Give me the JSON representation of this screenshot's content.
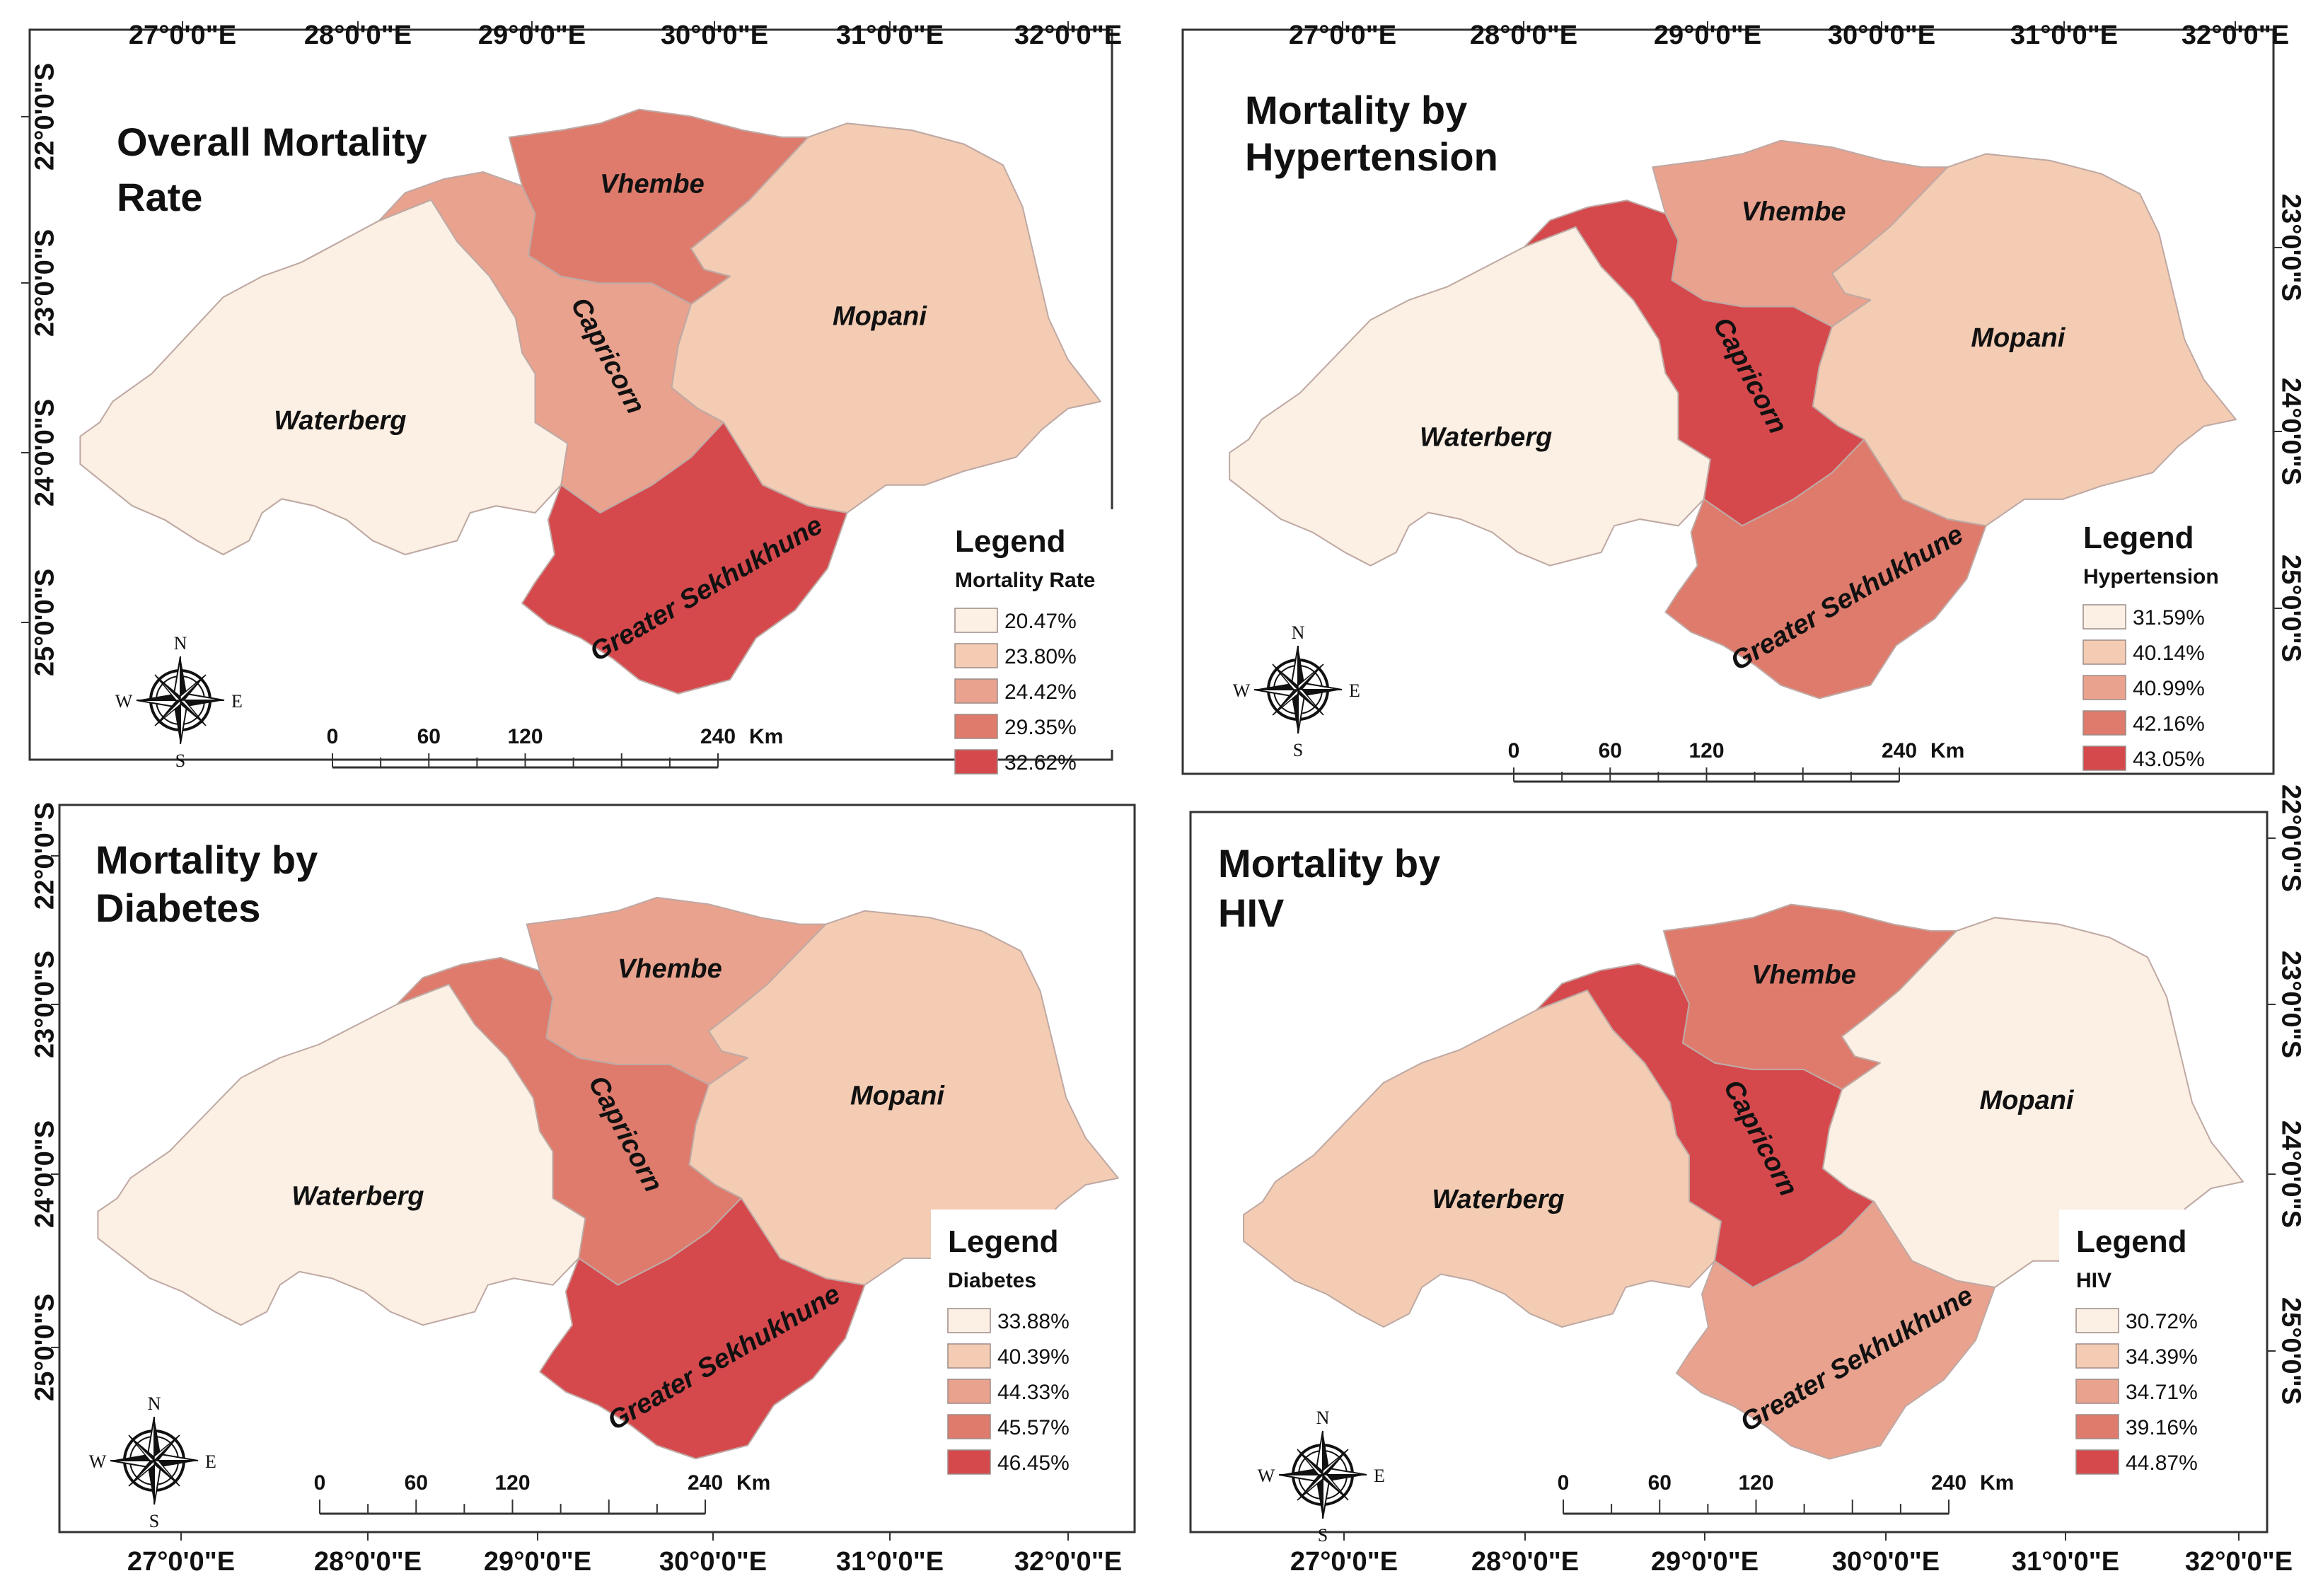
{
  "colors": {
    "class1": "#fcefe3",
    "class2": "#f3ccb3",
    "class3": "#e9a28e",
    "class4": "#de7b6c",
    "class5": "#d5494d",
    "outline": "#bfa9a4",
    "frame": "#333333"
  },
  "compass": {
    "n": "N",
    "s": "S",
    "e": "E",
    "w": "W"
  },
  "scalebar": {
    "labels": [
      "0",
      "60",
      "120",
      "240"
    ],
    "unit": "Km"
  },
  "districts": [
    "Waterberg",
    "Capricorn",
    "Vhembe",
    "Mopani",
    "Greater Sekhukhune"
  ],
  "panels": [
    {
      "id": "overall",
      "title": [
        "Overall Mortality",
        "Rate"
      ],
      "legend": {
        "title": "Legend",
        "subtitle": "Mortality Rate",
        "values": [
          "20.47%",
          "23.80%",
          "24.42%",
          "29.35%",
          "32.62%"
        ]
      },
      "classes": {
        "Waterberg": 1,
        "Capricorn": 3,
        "Vhembe": 4,
        "Mopani": 2,
        "Greater Sekhukhune": 5
      },
      "top_ticks": [
        "27°0'0\"E",
        "28°0'0\"E",
        "29°0'0\"E",
        "30°0'0\"E",
        "31°0'0\"E",
        "32°0'0\"E"
      ],
      "left_ticks": [
        "22°0'0\"S",
        "23°0'0\"S",
        "24°0'0\"S",
        "25°0'0\"S"
      ]
    },
    {
      "id": "hypertension",
      "title": [
        "Mortality by",
        "Hypertension"
      ],
      "legend": {
        "title": "Legend",
        "subtitle": "Hypertension",
        "values": [
          "31.59%",
          "40.14%",
          "40.99%",
          "42.16%",
          "43.05%"
        ]
      },
      "classes": {
        "Waterberg": 1,
        "Capricorn": 5,
        "Vhembe": 3,
        "Mopani": 2,
        "Greater Sekhukhune": 4
      },
      "top_ticks": [
        "27°0'0\"E",
        "28°0'0\"E",
        "29°0'0\"E",
        "30°0'0\"E",
        "31°0'0\"E",
        "32°0'0\"E"
      ],
      "right_ticks": [
        "23°0'0\"S",
        "24°0'0\"S",
        "25°0'0\"S"
      ]
    },
    {
      "id": "diabetes",
      "title": [
        "Mortality by",
        "Diabetes"
      ],
      "legend": {
        "title": "Legend",
        "subtitle": "Diabetes",
        "values": [
          "33.88%",
          "40.39%",
          "44.33%",
          "45.57%",
          "46.45%"
        ]
      },
      "classes": {
        "Waterberg": 1,
        "Capricorn": 4,
        "Vhembe": 3,
        "Mopani": 2,
        "Greater Sekhukhune": 5
      },
      "bottom_ticks": [
        "27°0'0\"E",
        "28°0'0\"E",
        "29°0'0\"E",
        "30°0'0\"E",
        "31°0'0\"E",
        "32°0'0\"E"
      ],
      "left_ticks": [
        "22°0'0\"S",
        "23°0'0\"S",
        "24°0'0\"S",
        "25°0'0\"S"
      ]
    },
    {
      "id": "hiv",
      "title": [
        "Mortality by",
        "HIV"
      ],
      "legend": {
        "title": "Legend",
        "subtitle": "HIV",
        "values": [
          "30.72%",
          "34.39%",
          "34.71%",
          "39.16%",
          "44.87%"
        ]
      },
      "classes": {
        "Waterberg": 2,
        "Capricorn": 5,
        "Vhembe": 4,
        "Mopani": 1,
        "Greater Sekhukhune": 3
      },
      "bottom_ticks": [
        "27°0'0\"E",
        "28°0'0\"E",
        "29°0'0\"E",
        "30°0'0\"E",
        "31°0'0\"E",
        "32°0'0\"E"
      ],
      "right_ticks": [
        "22°0'0\"S",
        "23°0'0\"S",
        "24°0'0\"S",
        "25°0'0\"S"
      ]
    }
  ]
}
